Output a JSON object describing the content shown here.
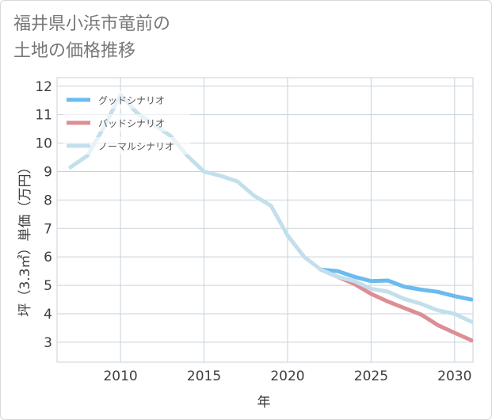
{
  "title": "福井県小浜市竜前の\n土地の価格推移",
  "chart_data": {
    "type": "line",
    "title": "福井県小浜市竜前の 土地の価格推移",
    "xlabel": "年",
    "ylabel": "坪（3.3㎡）単価（万円）",
    "xlim": [
      2006.2,
      2031.1
    ],
    "ylim": [
      2.3,
      12.3
    ],
    "xticks": [
      2010,
      2015,
      2020,
      2025,
      2030
    ],
    "yticks": [
      3,
      4,
      5,
      6,
      7,
      8,
      9,
      10,
      11,
      12
    ],
    "grid": true,
    "legend_position": "top-left",
    "series": [
      {
        "name": "グッドシナリオ",
        "color": "#6bbbef",
        "x": [
          2022,
          2023,
          2024,
          2025,
          2026,
          2027,
          2028,
          2029,
          2030,
          2031
        ],
        "values": [
          5.55,
          5.5,
          5.3,
          5.15,
          5.17,
          4.95,
          4.85,
          4.77,
          4.62,
          4.5
        ]
      },
      {
        "name": "バッドシナリオ",
        "color": "#dd8e95",
        "x": [
          2022,
          2023,
          2024,
          2025,
          2026,
          2027,
          2028,
          2029,
          2030,
          2031
        ],
        "values": [
          5.55,
          5.3,
          5.05,
          4.7,
          4.43,
          4.2,
          3.97,
          3.6,
          3.33,
          3.07
        ]
      },
      {
        "name": "ノーマルシナリオ",
        "color": "#c3dfec",
        "x": [
          2007,
          2008,
          2009,
          2010,
          2011,
          2012,
          2013,
          2014,
          2015,
          2016,
          2017,
          2018,
          2019,
          2020,
          2021,
          2022,
          2023,
          2024,
          2025,
          2026,
          2027,
          2028,
          2029,
          2030,
          2031
        ],
        "values": [
          9.15,
          9.55,
          10.55,
          11.7,
          11.05,
          10.65,
          10.25,
          9.55,
          9.0,
          8.85,
          8.65,
          8.15,
          7.8,
          6.75,
          6.0,
          5.55,
          5.3,
          5.15,
          4.88,
          4.78,
          4.52,
          4.35,
          4.12,
          4.0,
          3.72
        ]
      }
    ]
  }
}
